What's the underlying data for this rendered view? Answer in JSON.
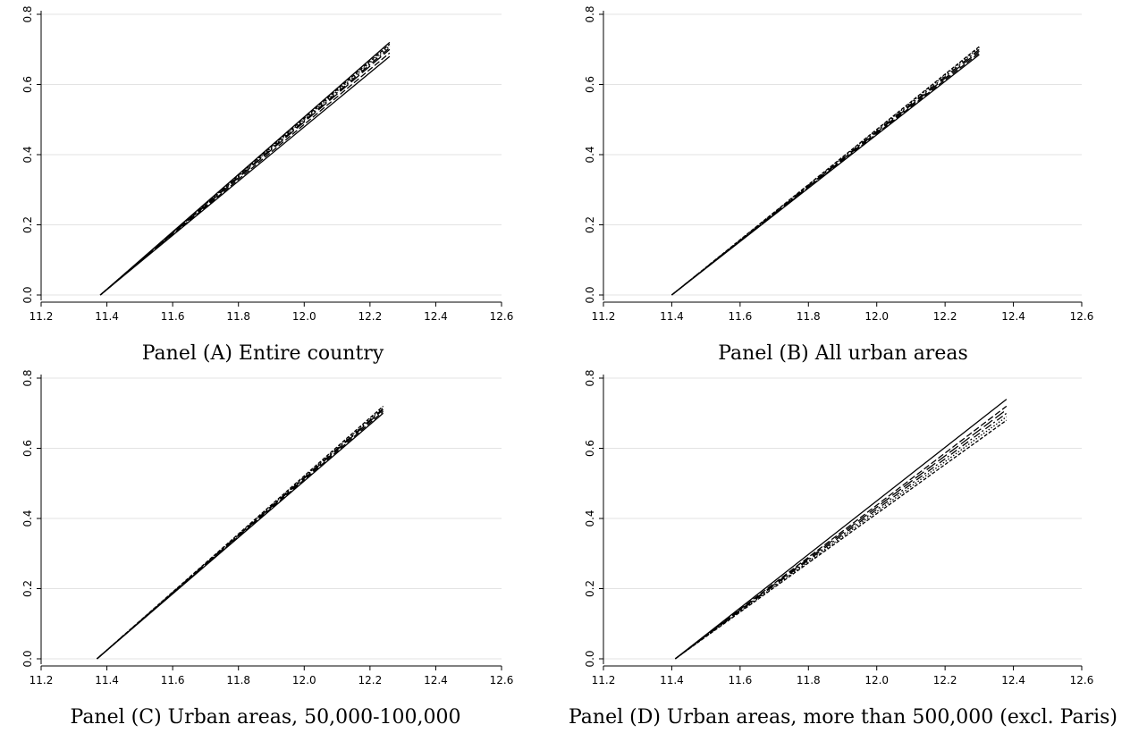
{
  "chart_data": [
    {
      "type": "line",
      "caption": "Panel (A) Entire country",
      "xlim": [
        11.2,
        12.6
      ],
      "ylim": [
        0.0,
        0.8
      ],
      "xticks": [
        "11.2",
        "11.4",
        "11.6",
        "11.8",
        "12.0",
        "12.2",
        "12.4",
        "12.6"
      ],
      "yticks": [
        "0.0",
        "0.2",
        "0.4",
        "0.6",
        "0.8"
      ],
      "grid": true,
      "series": [
        {
          "style": "solid",
          "x": [
            11.38,
            12.26
          ],
          "y": [
            0.0,
            0.68
          ]
        },
        {
          "style": "dash",
          "x": [
            11.38,
            12.26
          ],
          "y": [
            0.0,
            0.69
          ]
        },
        {
          "style": "longdash",
          "x": [
            11.38,
            12.26
          ],
          "y": [
            0.0,
            0.7
          ]
        },
        {
          "style": "dashdot",
          "x": [
            11.38,
            12.26
          ],
          "y": [
            0.0,
            0.705
          ]
        },
        {
          "style": "dot",
          "x": [
            11.38,
            12.26
          ],
          "y": [
            0.0,
            0.71
          ]
        },
        {
          "style": "shortdash",
          "x": [
            11.38,
            12.26
          ],
          "y": [
            0.0,
            0.715
          ]
        },
        {
          "style": "solid",
          "x": [
            11.38,
            12.26
          ],
          "y": [
            0.0,
            0.72
          ]
        }
      ]
    },
    {
      "type": "line",
      "caption": "Panel (B) All urban areas",
      "xlim": [
        11.2,
        12.6
      ],
      "ylim": [
        0.0,
        0.8
      ],
      "xticks": [
        "11.2",
        "11.4",
        "11.6",
        "11.8",
        "12.0",
        "12.2",
        "12.4",
        "12.6"
      ],
      "yticks": [
        "0.0",
        "0.2",
        "0.4",
        "0.6",
        "0.8"
      ],
      "grid": true,
      "series": [
        {
          "style": "solid",
          "x": [
            11.4,
            12.3
          ],
          "y": [
            0.0,
            0.685
          ]
        },
        {
          "style": "dash",
          "x": [
            11.4,
            12.3
          ],
          "y": [
            0.0,
            0.69
          ]
        },
        {
          "style": "longdash",
          "x": [
            11.4,
            12.3
          ],
          "y": [
            0.0,
            0.695
          ]
        },
        {
          "style": "dashdot",
          "x": [
            11.4,
            12.3
          ],
          "y": [
            0.0,
            0.7
          ]
        },
        {
          "style": "dot",
          "x": [
            11.4,
            12.3
          ],
          "y": [
            0.0,
            0.705
          ]
        },
        {
          "style": "shortdash",
          "x": [
            11.4,
            12.3
          ],
          "y": [
            0.0,
            0.708
          ]
        }
      ]
    },
    {
      "type": "line",
      "caption": "Panel (C) Urban areas, 50,000-100,000",
      "xlim": [
        11.2,
        12.6
      ],
      "ylim": [
        0.0,
        0.8
      ],
      "xticks": [
        "11.2",
        "11.4",
        "11.6",
        "11.8",
        "12.0",
        "12.2",
        "12.4",
        "12.6"
      ],
      "yticks": [
        "0.0",
        "0.2",
        "0.4",
        "0.6",
        "0.8"
      ],
      "grid": true,
      "series": [
        {
          "style": "solid",
          "x": [
            11.37,
            12.24
          ],
          "y": [
            0.0,
            0.7
          ]
        },
        {
          "style": "dash",
          "x": [
            11.37,
            12.24
          ],
          "y": [
            0.0,
            0.705
          ]
        },
        {
          "style": "longdash",
          "x": [
            11.37,
            12.24
          ],
          "y": [
            0.0,
            0.71
          ]
        },
        {
          "style": "dashdot",
          "x": [
            11.37,
            12.24
          ],
          "y": [
            0.0,
            0.713
          ]
        },
        {
          "style": "dot",
          "x": [
            11.37,
            12.24
          ],
          "y": [
            0.0,
            0.716
          ]
        },
        {
          "style": "shortdash",
          "x": [
            11.37,
            12.24
          ],
          "y": [
            0.0,
            0.72
          ]
        }
      ]
    },
    {
      "type": "line",
      "caption": "Panel (D) Urban areas, more than 500,000 (excl. Paris)",
      "xlim": [
        11.2,
        12.6
      ],
      "ylim": [
        0.0,
        0.8
      ],
      "xticks": [
        "11.2",
        "11.4",
        "11.6",
        "11.8",
        "12.0",
        "12.2",
        "12.4",
        "12.6"
      ],
      "yticks": [
        "0.0",
        "0.2",
        "0.4",
        "0.6",
        "0.8"
      ],
      "grid": true,
      "series": [
        {
          "style": "solid",
          "x": [
            11.41,
            12.38
          ],
          "y": [
            0.0,
            0.74
          ]
        },
        {
          "style": "dash",
          "x": [
            11.41,
            12.38
          ],
          "y": [
            0.0,
            0.72
          ]
        },
        {
          "style": "longdash",
          "x": [
            11.41,
            12.38
          ],
          "y": [
            0.0,
            0.71
          ]
        },
        {
          "style": "dashdot",
          "x": [
            11.41,
            12.38
          ],
          "y": [
            0.0,
            0.7
          ]
        },
        {
          "style": "dot",
          "x": [
            11.41,
            12.38
          ],
          "y": [
            0.0,
            0.69
          ]
        },
        {
          "style": "shortdash",
          "x": [
            11.41,
            12.38
          ],
          "y": [
            0.0,
            0.68
          ]
        }
      ]
    }
  ]
}
